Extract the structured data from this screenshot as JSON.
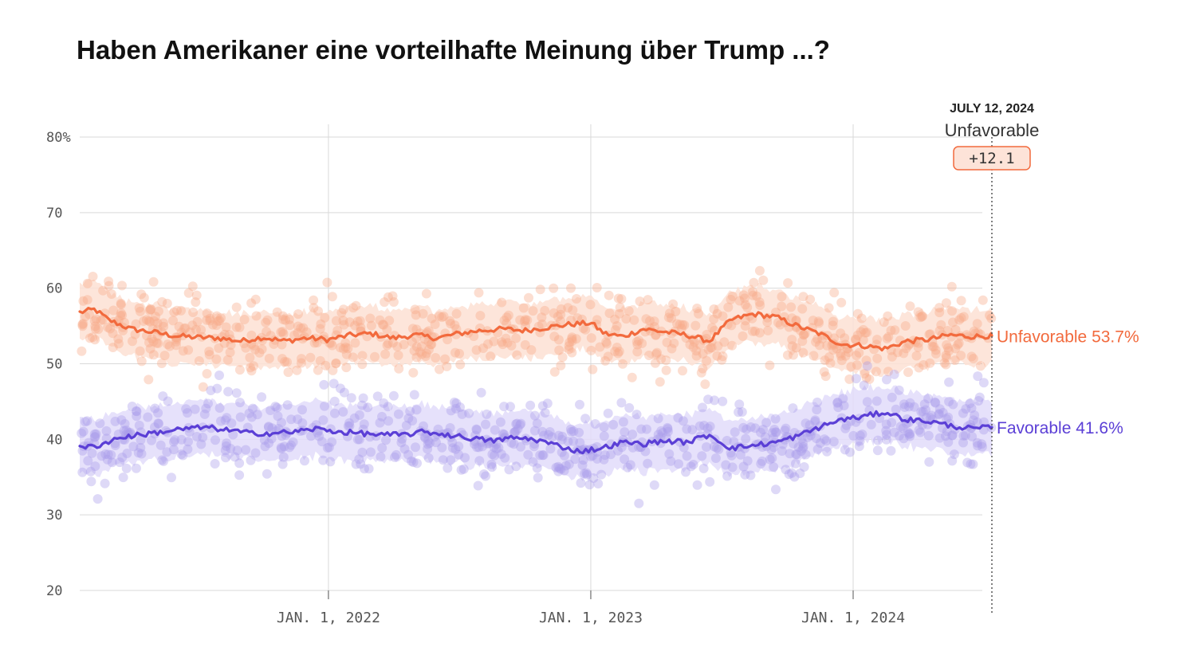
{
  "title": "Haben Amerikaner eine vorteilhafte Meinung über Trump ...?",
  "current": {
    "date_label": "JULY 12, 2024",
    "leader": "Unfavorable",
    "margin": "+12.1"
  },
  "colors": {
    "unfavorable": "#f26a3d",
    "unfavorable_dots": "#f7a987",
    "unfavorable_band": "#fde0d3",
    "favorable": "#5b3fd6",
    "favorable_dots": "#a99ae9",
    "favorable_band": "#e2dcfa",
    "grid": "#d9d9d9",
    "margin_box_fill": "#fde3d8",
    "margin_box_stroke": "#f26a3d"
  },
  "chart_data": {
    "type": "line",
    "x_start": "2021-01-20",
    "x_end": "2024-07-12",
    "ylim": [
      20,
      80
    ],
    "y_ticks": [
      {
        "value": 80,
        "label": "80%"
      },
      {
        "value": 70,
        "label": "70"
      },
      {
        "value": 60,
        "label": "60"
      },
      {
        "value": 50,
        "label": "50"
      },
      {
        "value": 40,
        "label": "40"
      },
      {
        "value": 30,
        "label": "30"
      },
      {
        "value": 20,
        "label": "20"
      }
    ],
    "x_ticks": [
      {
        "date": "2022-01-01",
        "label": "JAN. 1, 2022"
      },
      {
        "date": "2023-01-01",
        "label": "JAN. 1, 2023"
      },
      {
        "date": "2024-01-01",
        "label": "JAN. 1, 2024"
      }
    ],
    "grid": true,
    "series": [
      {
        "name": "Unfavorable",
        "end_label": "Unfavorable 53.7%",
        "color_key": "unfavorable",
        "points": [
          [
            "2021-01-20",
            56.8
          ],
          [
            "2021-02-10",
            57.2
          ],
          [
            "2021-03-01",
            55.8
          ],
          [
            "2021-04-01",
            54.6
          ],
          [
            "2021-05-01",
            54.2
          ],
          [
            "2021-06-01",
            53.7
          ],
          [
            "2021-07-01",
            53.5
          ],
          [
            "2021-08-01",
            53.4
          ],
          [
            "2021-09-01",
            53.0
          ],
          [
            "2021-10-01",
            53.5
          ],
          [
            "2021-11-01",
            53.0
          ],
          [
            "2021-12-01",
            53.4
          ],
          [
            "2022-01-01",
            53.2
          ],
          [
            "2022-02-01",
            53.8
          ],
          [
            "2022-03-01",
            54.0
          ],
          [
            "2022-04-01",
            53.4
          ],
          [
            "2022-05-01",
            53.8
          ],
          [
            "2022-06-01",
            53.4
          ],
          [
            "2022-07-01",
            54.0
          ],
          [
            "2022-08-01",
            54.4
          ],
          [
            "2022-09-01",
            54.6
          ],
          [
            "2022-10-01",
            54.4
          ],
          [
            "2022-11-01",
            54.8
          ],
          [
            "2022-12-01",
            55.2
          ],
          [
            "2023-01-01",
            55.4
          ],
          [
            "2023-01-20",
            54.0
          ],
          [
            "2023-02-15",
            53.6
          ],
          [
            "2023-03-15",
            54.6
          ],
          [
            "2023-04-15",
            54.2
          ],
          [
            "2023-05-15",
            53.8
          ],
          [
            "2023-06-15",
            53.0
          ],
          [
            "2023-07-15",
            55.8
          ],
          [
            "2023-08-15",
            56.6
          ],
          [
            "2023-09-15",
            56.2
          ],
          [
            "2023-10-15",
            55.0
          ],
          [
            "2023-11-15",
            54.0
          ],
          [
            "2023-12-15",
            52.6
          ],
          [
            "2024-01-15",
            52.4
          ],
          [
            "2024-02-15",
            52.0
          ],
          [
            "2024-03-15",
            53.0
          ],
          [
            "2024-04-15",
            53.2
          ],
          [
            "2024-05-15",
            53.8
          ],
          [
            "2024-06-15",
            53.6
          ],
          [
            "2024-07-12",
            53.7
          ]
        ]
      },
      {
        "name": "Favorable",
        "end_label": "Favorable 41.6%",
        "color_key": "favorable",
        "points": [
          [
            "2021-01-20",
            38.8
          ],
          [
            "2021-02-15",
            39.2
          ],
          [
            "2021-03-15",
            40.2
          ],
          [
            "2021-04-15",
            40.6
          ],
          [
            "2021-05-15",
            41.0
          ],
          [
            "2021-06-15",
            41.4
          ],
          [
            "2021-07-15",
            41.6
          ],
          [
            "2021-08-15",
            41.2
          ],
          [
            "2021-09-15",
            40.8
          ],
          [
            "2021-10-15",
            40.8
          ],
          [
            "2021-11-15",
            41.0
          ],
          [
            "2021-12-15",
            41.4
          ],
          [
            "2022-01-15",
            41.0
          ],
          [
            "2022-02-15",
            40.8
          ],
          [
            "2022-03-15",
            40.6
          ],
          [
            "2022-04-15",
            40.6
          ],
          [
            "2022-05-15",
            41.0
          ],
          [
            "2022-06-15",
            40.6
          ],
          [
            "2022-07-15",
            40.2
          ],
          [
            "2022-08-15",
            39.8
          ],
          [
            "2022-09-15",
            40.2
          ],
          [
            "2022-10-15",
            40.0
          ],
          [
            "2022-11-15",
            39.2
          ],
          [
            "2022-12-15",
            38.4
          ],
          [
            "2023-01-15",
            38.8
          ],
          [
            "2023-02-15",
            39.6
          ],
          [
            "2023-03-15",
            39.4
          ],
          [
            "2023-04-15",
            39.8
          ],
          [
            "2023-05-15",
            39.6
          ],
          [
            "2023-06-15",
            40.6
          ],
          [
            "2023-07-15",
            38.8
          ],
          [
            "2023-08-15",
            39.2
          ],
          [
            "2023-09-15",
            39.6
          ],
          [
            "2023-10-15",
            40.4
          ],
          [
            "2023-11-15",
            41.6
          ],
          [
            "2023-12-15",
            42.6
          ],
          [
            "2024-01-15",
            43.0
          ],
          [
            "2024-02-15",
            43.6
          ],
          [
            "2024-03-15",
            42.6
          ],
          [
            "2024-04-15",
            42.4
          ],
          [
            "2024-05-15",
            41.8
          ],
          [
            "2024-06-15",
            41.4
          ],
          [
            "2024-07-12",
            41.6
          ]
        ]
      }
    ]
  }
}
